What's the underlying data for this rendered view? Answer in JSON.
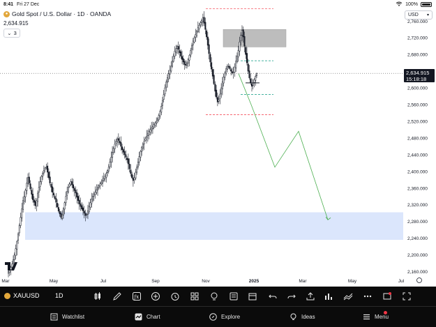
{
  "status": {
    "time": "8:41",
    "date": "Fri 27 Dec",
    "battery": "100%"
  },
  "header": {
    "title": "Gold Spot / U.S. Dollar · 1D · OANDA",
    "last_price": "2,634.915",
    "indicators_count": "3"
  },
  "currency": {
    "selected": "USD"
  },
  "price_axis": {
    "ticks": [
      2160,
      2200,
      2240,
      2280,
      2320,
      2360,
      2400,
      2440,
      2480,
      2520,
      2560,
      2600,
      2640,
      2680,
      2720,
      2760
    ],
    "tick_labels": [
      "2,160.000",
      "2,200.000",
      "2,240.000",
      "2,280.000",
      "2,320.000",
      "2,360.000",
      "2,400.000",
      "2,440.000",
      "2,480.000",
      "2,520.000",
      "2,560.000",
      "2,600.000",
      "2,640.000",
      "2,680.000",
      "2,720.000",
      "2,760.000"
    ],
    "current_price_label": "2,634.915",
    "countdown": "15:18:18"
  },
  "time_axis": {
    "labels": [
      "Mar",
      "May",
      "Jul",
      "Sep",
      "Nov",
      "2025",
      "Mar",
      "May",
      "Jul"
    ]
  },
  "chart_data": {
    "type": "candlestick",
    "symbol": "XAUUSD",
    "timeframe": "1D",
    "current_price": 2634.915,
    "ylim": [
      2140,
      2790
    ],
    "supply_zone": [
      2698,
      2740
    ],
    "demand_zone": [
      2236,
      2302
    ],
    "projection_path": [
      [
        2634,
        2630
      ],
      [
        2560,
        2620
      ],
      [
        2410,
        2410
      ],
      [
        2496,
        2490
      ],
      [
        2284,
        2284
      ]
    ],
    "dashed_levels": [
      2790,
      2665,
      2584,
      2536
    ],
    "closes": [
      2160,
      2165,
      2170,
      2178,
      2188,
      2200,
      2215,
      2232,
      2250,
      2270,
      2290,
      2310,
      2330,
      2340,
      2355,
      2372,
      2385,
      2372,
      2358,
      2345,
      2332,
      2326,
      2318,
      2330,
      2348,
      2362,
      2375,
      2388,
      2395,
      2402,
      2408,
      2410,
      2398,
      2385,
      2372,
      2362,
      2350,
      2343,
      2335,
      2326,
      2315,
      2305,
      2298,
      2290,
      2296,
      2310,
      2325,
      2340,
      2352,
      2362,
      2370,
      2375,
      2368,
      2360,
      2354,
      2348,
      2338,
      2330,
      2322,
      2316,
      2310,
      2306,
      2300,
      2294,
      2297,
      2305,
      2316,
      2325,
      2334,
      2340,
      2346,
      2350,
      2356,
      2361,
      2365,
      2370,
      2374,
      2378,
      2383,
      2388,
      2395,
      2402,
      2410,
      2422,
      2434,
      2446,
      2456,
      2465,
      2472,
      2478,
      2474,
      2468,
      2460,
      2452,
      2446,
      2440,
      2434,
      2428,
      2418,
      2406,
      2395,
      2385,
      2378,
      2386,
      2398,
      2410,
      2422,
      2436,
      2448,
      2458,
      2466,
      2472,
      2478,
      2484,
      2490,
      2496,
      2500,
      2504,
      2508,
      2512,
      2516,
      2520,
      2526,
      2534,
      2544,
      2556,
      2570,
      2584,
      2600,
      2614,
      2624,
      2634,
      2642,
      2652,
      2664,
      2676,
      2688,
      2694,
      2700,
      2692,
      2684,
      2676,
      2668,
      2662,
      2656,
      2654,
      2660,
      2668,
      2678,
      2690,
      2702,
      2712,
      2720,
      2728,
      2736,
      2744,
      2750,
      2756,
      2762,
      2768,
      2755,
      2740,
      2722,
      2702,
      2682,
      2662,
      2645,
      2628,
      2610,
      2592,
      2578,
      2566,
      2572,
      2585,
      2600,
      2614,
      2626,
      2636,
      2646,
      2652,
      2650,
      2646,
      2640,
      2636,
      2638,
      2650,
      2664,
      2676,
      2690,
      2710,
      2726,
      2738,
      2722,
      2700,
      2680,
      2660,
      2640,
      2624,
      2612,
      2604,
      2612,
      2620,
      2628,
      2634
    ]
  },
  "bottom_toolbar": {
    "symbol": "XAUUSD",
    "timeframe": "1D"
  },
  "tabs": [
    {
      "label": "Watchlist",
      "icon": "list-icon"
    },
    {
      "label": "Chart",
      "icon": "chart-icon"
    },
    {
      "label": "Explore",
      "icon": "compass-icon"
    },
    {
      "label": "Ideas",
      "icon": "lightbulb-icon"
    },
    {
      "label": "Menu",
      "icon": "menu-icon"
    }
  ]
}
